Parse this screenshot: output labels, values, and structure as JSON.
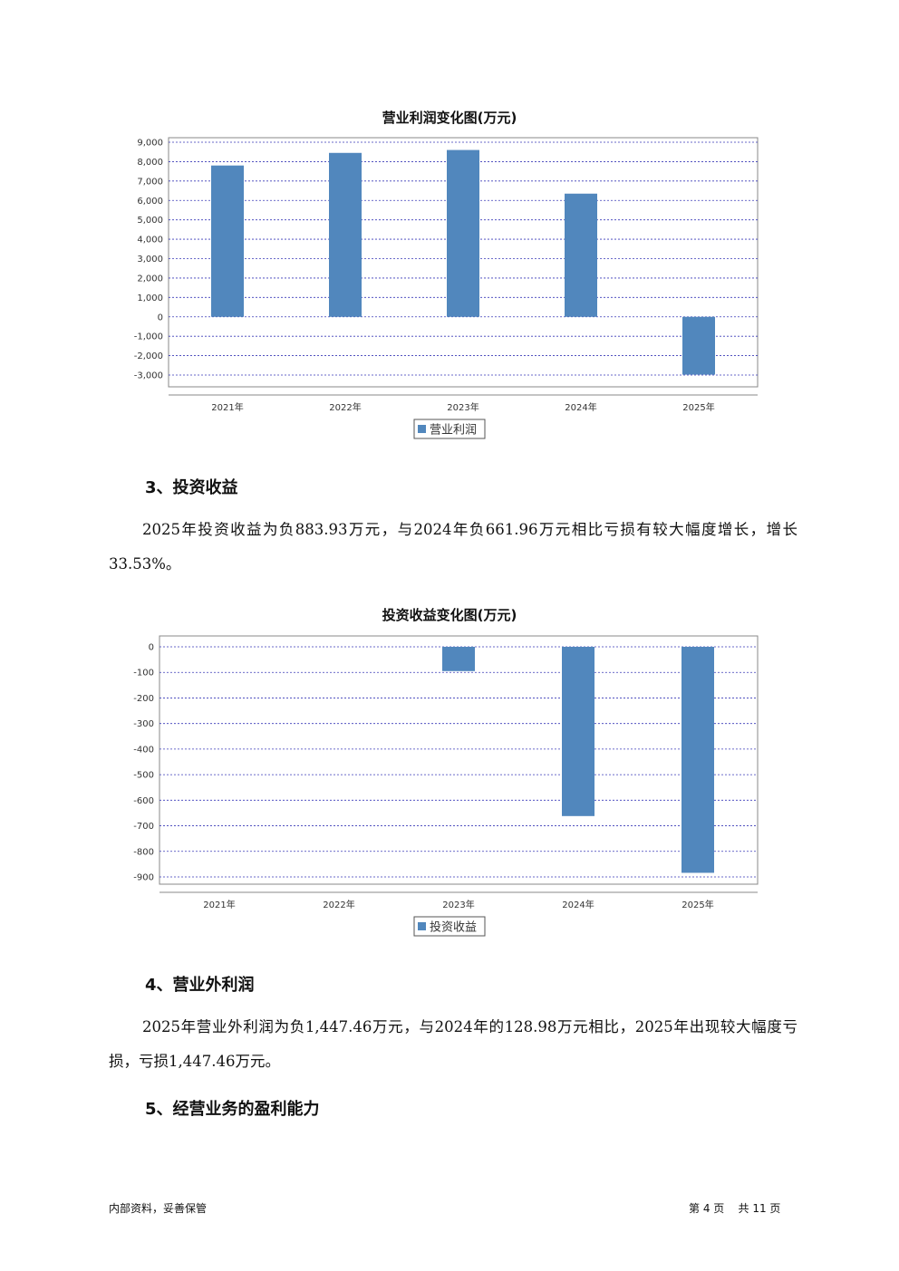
{
  "chart_data": [
    {
      "type": "bar",
      "title": "营业利润变化图(万元)",
      "categories": [
        "2021年",
        "2022年",
        "2023年",
        "2024年",
        "2025年"
      ],
      "series": [
        {
          "name": "营业利润",
          "values": [
            7800,
            8450,
            8600,
            6350,
            -2980
          ]
        }
      ],
      "ylim": [
        -3000,
        9000
      ],
      "yticks": [
        "9,000",
        "8,000",
        "7,000",
        "6,000",
        "5,000",
        "4,000",
        "3,000",
        "2,000",
        "1,000",
        "0",
        "-1,000",
        "-2,000",
        "-3,000"
      ],
      "grid": true,
      "legend": "bottom-center",
      "color": "#5187bd"
    },
    {
      "type": "bar",
      "title": "投资收益变化图(万元)",
      "categories": [
        "2021年",
        "2022年",
        "2023年",
        "2024年",
        "2025年"
      ],
      "series": [
        {
          "name": "投资收益",
          "values": [
            0,
            0,
            -95,
            -661.96,
            -883.93
          ]
        }
      ],
      "ylim": [
        -900,
        0
      ],
      "yticks": [
        "0",
        "-100",
        "-200",
        "-300",
        "-400",
        "-500",
        "-600",
        "-700",
        "-800",
        "-900"
      ],
      "grid": true,
      "legend": "bottom-center",
      "color": "#5187bd"
    }
  ],
  "sections": {
    "s3_heading": "3、投资收益",
    "s3_para": "2025年投资收益为负883.93万元，与2024年负661.96万元相比亏损有较大幅度增长，增长33.53%。",
    "s4_heading": "4、营业外利润",
    "s4_para": "2025年营业外利润为负1,447.46万元，与2024年的128.98万元相比，2025年出现较大幅度亏损，亏损1,447.46万元。",
    "s5_heading": "5、经营业务的盈利能力"
  },
  "footer": {
    "left": "内部资料，妥善保管",
    "page_label": "第 4 页    共 11 页"
  }
}
